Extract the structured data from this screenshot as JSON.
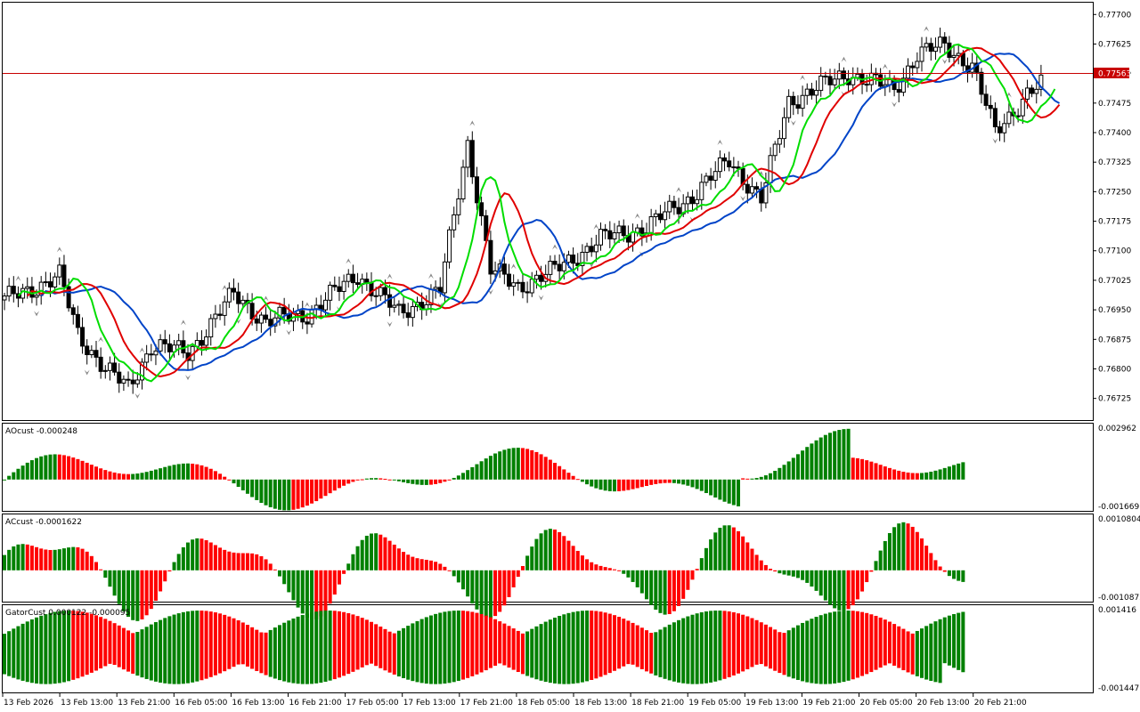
{
  "panes": {
    "main": {
      "ticks": [
        "0.77700",
        "0.77625",
        "0.77550",
        "0.77475",
        "0.77400",
        "0.77325",
        "0.77250",
        "0.77175",
        "0.77100",
        "0.77025",
        "0.76950",
        "0.76875",
        "0.76800",
        "0.76725"
      ],
      "tick_values": [
        0.777,
        0.77625,
        0.7755,
        0.77475,
        0.774,
        0.77325,
        0.7725,
        0.77175,
        0.771,
        0.77025,
        0.7695,
        0.76875,
        0.768,
        0.76725
      ],
      "range": [
        0.7667,
        0.7773
      ],
      "current_price": "0.77563",
      "current_value": 0.77563,
      "price_line_color": "#c80000",
      "bull_color": "#ffffff",
      "bear_color": "#000000"
    },
    "ao": {
      "title": "AOcust -0.000248",
      "max_label": "0.002962",
      "min_label": "-0.001669",
      "up_color": "#008000",
      "down_color": "#ff0000"
    },
    "ac": {
      "title": "ACcust -0.0001622",
      "max_label": "0.0010804",
      "min_label": "-0.0010872"
    },
    "gator": {
      "title": "GatorCust 0.000122 -0.000095",
      "max_label": "0.001416",
      "min_label": "-0.001447"
    }
  },
  "alligator": {
    "jaw_color": "#0044c8",
    "teeth_color": "#e00000",
    "lips_color": "#00dd00"
  },
  "time_axis": [
    "13 Feb 2026",
    "13 Feb 13:00",
    "13 Feb 21:00",
    "16 Feb 05:00",
    "16 Feb 13:00",
    "16 Feb 21:00",
    "17 Feb 05:00",
    "17 Feb 13:00",
    "17 Feb 21:00",
    "18 Feb 05:00",
    "18 Feb 13:00",
    "18 Feb 21:00",
    "19 Feb 05:00",
    "19 Feb 13:00",
    "19 Feb 21:00",
    "20 Feb 05:00",
    "20 Feb 13:00",
    "20 Feb 21:00"
  ]
}
